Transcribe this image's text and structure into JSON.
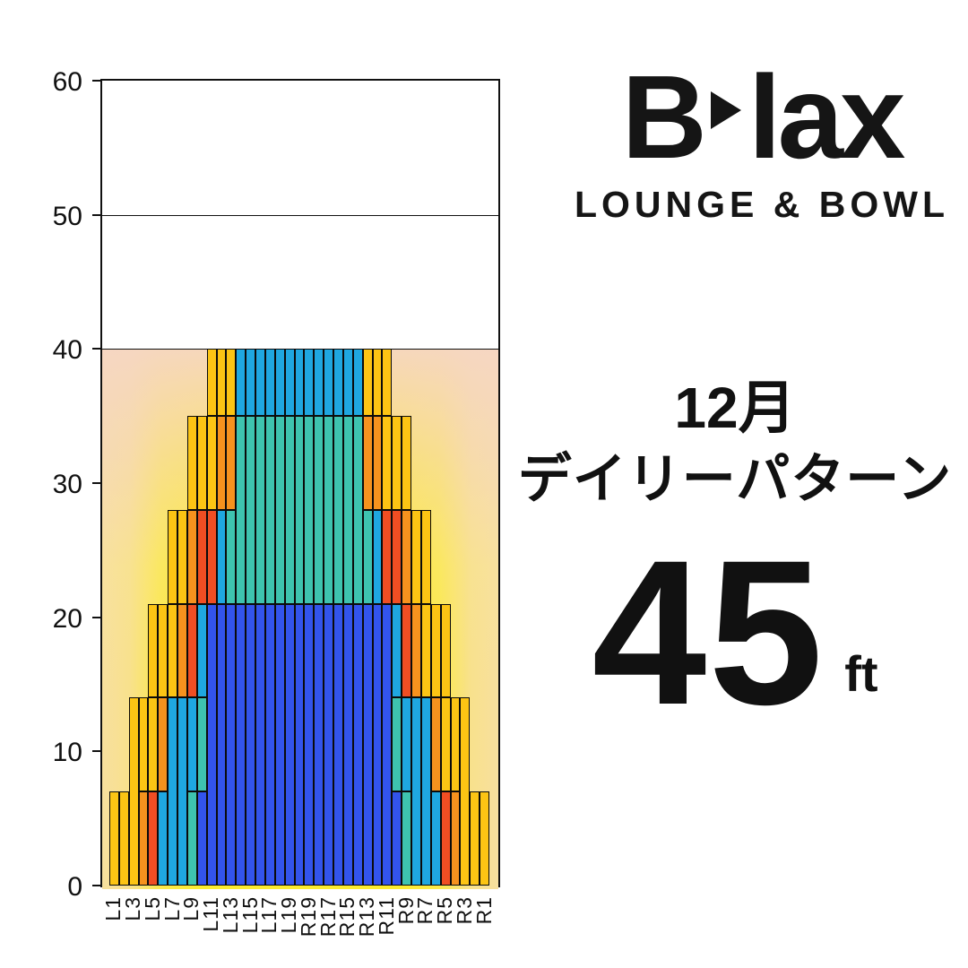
{
  "brand": {
    "name_b": "B",
    "name_rest": "lax",
    "subtitle": "LOUNGE & BOWL"
  },
  "panel": {
    "month": "12月",
    "pattern_name": "デイリーパターン",
    "distance_value": "45",
    "distance_unit": "ft"
  },
  "chart_data": {
    "type": "bar",
    "title": "December daily oil pattern - oil units per board",
    "ylim": [
      0,
      60
    ],
    "y_ticks": [
      0,
      10,
      20,
      30,
      40,
      50,
      60
    ],
    "gridlines": [
      40,
      50
    ],
    "x_tick_labels": [
      "L1",
      "L3",
      "L5",
      "L7",
      "L9",
      "L11",
      "L13",
      "L15",
      "L17",
      "L19",
      "R19",
      "R17",
      "R15",
      "R13",
      "R11",
      "R9",
      "R7",
      "R5",
      "R3",
      "R1"
    ],
    "legend_position": "none",
    "palette": {
      "g": "#FCC414",
      "o": "#F6921E",
      "r": "#F04E23",
      "s": "#1FA7E0",
      "t": "#3EC3AF",
      "b": "#3354EC"
    },
    "background": {
      "glow_yellow": "#FCEC2E",
      "glow_peach": "#F6D6C4",
      "above_line": 40
    },
    "boards": [
      {
        "board": "L1",
        "total": 7,
        "segments": [
          [
            0,
            7,
            "g"
          ]
        ]
      },
      {
        "board": "L2",
        "total": 7,
        "segments": [
          [
            0,
            7,
            "g"
          ]
        ]
      },
      {
        "board": "L3",
        "total": 14,
        "segments": [
          [
            0,
            14,
            "g"
          ]
        ]
      },
      {
        "board": "L4",
        "total": 14,
        "segments": [
          [
            0,
            7,
            "o"
          ],
          [
            7,
            14,
            "g"
          ]
        ]
      },
      {
        "board": "L5",
        "total": 21,
        "segments": [
          [
            0,
            7,
            "r"
          ],
          [
            7,
            14,
            "g"
          ],
          [
            14,
            21,
            "g"
          ]
        ]
      },
      {
        "board": "L6",
        "total": 21,
        "segments": [
          [
            0,
            7,
            "s"
          ],
          [
            7,
            14,
            "o"
          ],
          [
            14,
            21,
            "g"
          ]
        ]
      },
      {
        "board": "L7",
        "total": 28,
        "segments": [
          [
            0,
            14,
            "s"
          ],
          [
            14,
            21,
            "g"
          ],
          [
            21,
            28,
            "g"
          ]
        ]
      },
      {
        "board": "L8",
        "total": 28,
        "segments": [
          [
            0,
            14,
            "s"
          ],
          [
            14,
            21,
            "o"
          ],
          [
            21,
            28,
            "g"
          ]
        ]
      },
      {
        "board": "L9",
        "total": 35,
        "segments": [
          [
            0,
            7,
            "t"
          ],
          [
            7,
            14,
            "s"
          ],
          [
            14,
            21,
            "r"
          ],
          [
            21,
            28,
            "o"
          ],
          [
            28,
            35,
            "g"
          ]
        ]
      },
      {
        "board": "L10",
        "total": 35,
        "segments": [
          [
            0,
            7,
            "b"
          ],
          [
            7,
            14,
            "t"
          ],
          [
            14,
            21,
            "s"
          ],
          [
            21,
            28,
            "r"
          ],
          [
            28,
            35,
            "g"
          ]
        ]
      },
      {
        "board": "L11",
        "total": 40,
        "segments": [
          [
            0,
            21,
            "b"
          ],
          [
            21,
            28,
            "r"
          ],
          [
            28,
            35,
            "g"
          ],
          [
            35,
            40,
            "g"
          ]
        ]
      },
      {
        "board": "L12",
        "total": 40,
        "segments": [
          [
            0,
            21,
            "b"
          ],
          [
            21,
            28,
            "s"
          ],
          [
            28,
            35,
            "o"
          ],
          [
            35,
            40,
            "g"
          ]
        ]
      },
      {
        "board": "L13",
        "total": 40,
        "segments": [
          [
            0,
            21,
            "b"
          ],
          [
            21,
            28,
            "t"
          ],
          [
            28,
            35,
            "o"
          ],
          [
            35,
            40,
            "g"
          ]
        ]
      },
      {
        "board": "L14",
        "total": 40,
        "segments": [
          [
            0,
            21,
            "b"
          ],
          [
            21,
            35,
            "t"
          ],
          [
            35,
            40,
            "s"
          ]
        ]
      },
      {
        "board": "L15",
        "total": 40,
        "segments": [
          [
            0,
            21,
            "b"
          ],
          [
            21,
            35,
            "t"
          ],
          [
            35,
            40,
            "s"
          ]
        ]
      },
      {
        "board": "L16",
        "total": 40,
        "segments": [
          [
            0,
            21,
            "b"
          ],
          [
            21,
            35,
            "t"
          ],
          [
            35,
            40,
            "s"
          ]
        ]
      },
      {
        "board": "L17",
        "total": 40,
        "segments": [
          [
            0,
            21,
            "b"
          ],
          [
            21,
            35,
            "t"
          ],
          [
            35,
            40,
            "s"
          ]
        ]
      },
      {
        "board": "L18",
        "total": 40,
        "segments": [
          [
            0,
            21,
            "b"
          ],
          [
            21,
            35,
            "t"
          ],
          [
            35,
            40,
            "s"
          ]
        ]
      },
      {
        "board": "L19",
        "total": 40,
        "segments": [
          [
            0,
            21,
            "b"
          ],
          [
            21,
            35,
            "t"
          ],
          [
            35,
            40,
            "s"
          ]
        ]
      },
      {
        "board": "20",
        "total": 40,
        "segments": [
          [
            0,
            21,
            "b"
          ],
          [
            21,
            35,
            "t"
          ],
          [
            35,
            40,
            "s"
          ]
        ]
      },
      {
        "board": "R19",
        "total": 40,
        "segments": [
          [
            0,
            21,
            "b"
          ],
          [
            21,
            35,
            "t"
          ],
          [
            35,
            40,
            "s"
          ]
        ]
      },
      {
        "board": "R18",
        "total": 40,
        "segments": [
          [
            0,
            21,
            "b"
          ],
          [
            21,
            35,
            "t"
          ],
          [
            35,
            40,
            "s"
          ]
        ]
      },
      {
        "board": "R17",
        "total": 40,
        "segments": [
          [
            0,
            21,
            "b"
          ],
          [
            21,
            35,
            "t"
          ],
          [
            35,
            40,
            "s"
          ]
        ]
      },
      {
        "board": "R16",
        "total": 40,
        "segments": [
          [
            0,
            21,
            "b"
          ],
          [
            21,
            35,
            "t"
          ],
          [
            35,
            40,
            "s"
          ]
        ]
      },
      {
        "board": "R15",
        "total": 40,
        "segments": [
          [
            0,
            21,
            "b"
          ],
          [
            21,
            35,
            "t"
          ],
          [
            35,
            40,
            "s"
          ]
        ]
      },
      {
        "board": "R14",
        "total": 40,
        "segments": [
          [
            0,
            21,
            "b"
          ],
          [
            21,
            35,
            "t"
          ],
          [
            35,
            40,
            "s"
          ]
        ]
      },
      {
        "board": "R13",
        "total": 40,
        "segments": [
          [
            0,
            21,
            "b"
          ],
          [
            21,
            28,
            "t"
          ],
          [
            28,
            35,
            "o"
          ],
          [
            35,
            40,
            "g"
          ]
        ]
      },
      {
        "board": "R12",
        "total": 40,
        "segments": [
          [
            0,
            21,
            "b"
          ],
          [
            21,
            28,
            "s"
          ],
          [
            28,
            35,
            "o"
          ],
          [
            35,
            40,
            "g"
          ]
        ]
      },
      {
        "board": "R11",
        "total": 40,
        "segments": [
          [
            0,
            21,
            "b"
          ],
          [
            21,
            28,
            "r"
          ],
          [
            28,
            35,
            "g"
          ],
          [
            35,
            40,
            "g"
          ]
        ]
      },
      {
        "board": "R10",
        "total": 35,
        "segments": [
          [
            0,
            7,
            "b"
          ],
          [
            7,
            14,
            "t"
          ],
          [
            14,
            21,
            "s"
          ],
          [
            21,
            28,
            "r"
          ],
          [
            28,
            35,
            "g"
          ]
        ]
      },
      {
        "board": "R9",
        "total": 35,
        "segments": [
          [
            0,
            7,
            "t"
          ],
          [
            7,
            14,
            "s"
          ],
          [
            14,
            21,
            "r"
          ],
          [
            21,
            28,
            "o"
          ],
          [
            28,
            35,
            "g"
          ]
        ]
      },
      {
        "board": "R8",
        "total": 28,
        "segments": [
          [
            0,
            14,
            "s"
          ],
          [
            14,
            21,
            "o"
          ],
          [
            21,
            28,
            "g"
          ]
        ]
      },
      {
        "board": "R7",
        "total": 28,
        "segments": [
          [
            0,
            14,
            "s"
          ],
          [
            14,
            21,
            "g"
          ],
          [
            21,
            28,
            "g"
          ]
        ]
      },
      {
        "board": "R6",
        "total": 21,
        "segments": [
          [
            0,
            7,
            "s"
          ],
          [
            7,
            14,
            "o"
          ],
          [
            14,
            21,
            "g"
          ]
        ]
      },
      {
        "board": "R5",
        "total": 21,
        "segments": [
          [
            0,
            7,
            "r"
          ],
          [
            7,
            14,
            "g"
          ],
          [
            14,
            21,
            "g"
          ]
        ]
      },
      {
        "board": "R4",
        "total": 14,
        "segments": [
          [
            0,
            7,
            "o"
          ],
          [
            7,
            14,
            "g"
          ]
        ]
      },
      {
        "board": "R3",
        "total": 14,
        "segments": [
          [
            0,
            14,
            "g"
          ]
        ]
      },
      {
        "board": "R2",
        "total": 7,
        "segments": [
          [
            0,
            7,
            "g"
          ]
        ]
      },
      {
        "board": "R1",
        "total": 7,
        "segments": [
          [
            0,
            7,
            "g"
          ]
        ]
      }
    ]
  }
}
